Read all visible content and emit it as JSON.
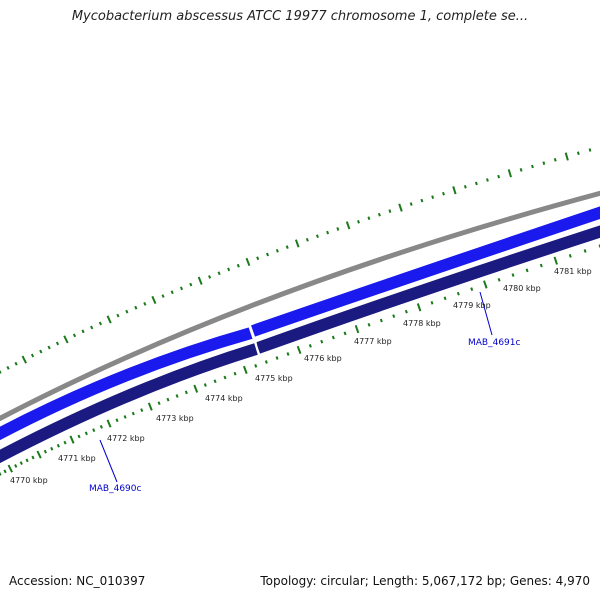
{
  "title": "Mycobacterium abscessus ATCC 19977 chromosome 1, complete se...",
  "footer": {
    "accession": "Accession: NC_010397",
    "summary": "Topology: circular; Length: 5,067,172 bp; Genes: 4,970"
  },
  "colors": {
    "backbone": "#888888",
    "forward_strand": "#1a1aee",
    "reverse_strand": "#1a1a80",
    "ticks": "#1a7a1a",
    "gene_label": "#0000cc"
  },
  "scale_labels": [
    "4770 kbp",
    "4771 kbp",
    "4772 kbp",
    "4773 kbp",
    "4774 kbp",
    "4775 kbp",
    "4776 kbp",
    "4777 kbp",
    "4778 kbp",
    "4779 kbp",
    "4780 kbp",
    "4781 kbp"
  ],
  "genes": [
    {
      "label": "MAB_4690c",
      "strand": "reverse"
    },
    {
      "label": "MAB_4691c",
      "strand": "reverse"
    }
  ]
}
